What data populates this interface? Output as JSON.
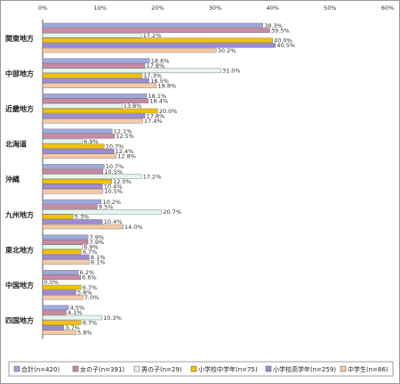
{
  "chart_data": {
    "type": "bar",
    "orientation": "horizontal",
    "title": "",
    "xlabel": "",
    "ylabel": "",
    "xlim": [
      0,
      60
    ],
    "x_ticks": [
      "0%",
      "10%",
      "20%",
      "30%",
      "40%",
      "50%",
      "60%"
    ],
    "grid": false,
    "legend_position": "bottom",
    "categories": [
      "関東地方",
      "中部地方",
      "近畿地方",
      "北海道",
      "沖縄",
      "九州地方",
      "東北地方",
      "中国地方",
      "四国地方"
    ],
    "series": [
      {
        "name": "合計(n=420)",
        "color": "#9ea8dc",
        "values": [
          38.3,
          18.6,
          18.1,
          12.1,
          10.7,
          10.2,
          7.9,
          6.2,
          4.5
        ]
      },
      {
        "name": "女の子(n=391)",
        "color": "#c889a4",
        "values": [
          39.5,
          17.8,
          18.4,
          12.5,
          10.5,
          9.5,
          7.9,
          6.6,
          4.1
        ]
      },
      {
        "name": "男の子(n=29)",
        "color": "#e4f6ee",
        "values": [
          17.2,
          31.0,
          13.8,
          6.9,
          17.2,
          20.7,
          6.9,
          0.0,
          10.3
        ]
      },
      {
        "name": "小学校中学年(n=75)",
        "color": "#f2c200",
        "values": [
          40.0,
          17.3,
          20.0,
          10.7,
          12.0,
          5.3,
          6.7,
          6.7,
          6.7
        ]
      },
      {
        "name": "小学校高学年(n=259)",
        "color": "#a08ad2",
        "values": [
          40.5,
          18.5,
          17.8,
          12.4,
          10.4,
          10.4,
          8.1,
          5.8,
          3.7
        ]
      },
      {
        "name": "中学生(n=86)",
        "color": "#f4c9a6",
        "values": [
          30.2,
          19.8,
          17.4,
          12.8,
          10.5,
          14.0,
          8.1,
          7.0,
          5.8
        ]
      }
    ],
    "data_labels": [
      [
        "38.3%",
        "18.6%",
        "18.1%",
        "12.1%",
        "10.7%",
        "10.2%",
        "7.9%",
        "6.2%",
        "4.5%"
      ],
      [
        "39.5%",
        "17.8%",
        "18.4%",
        "12.5%",
        "10.5%",
        "9.5%",
        "7.9%",
        "6.6%",
        "4.1%"
      ],
      [
        "17.2%",
        "31.0%",
        "13.8%",
        "6.9%",
        "17.2%",
        "20.7%",
        "6.9%",
        "0.0%",
        "10.3%"
      ],
      [
        "40.0%",
        "17.3%",
        "20.0%",
        "10.7%",
        "12.0%",
        "5.3%",
        "6.7%",
        "6.7%",
        "6.7%"
      ],
      [
        "40.5%",
        "18.5%",
        "17.8%",
        "12.4%",
        "10.4%",
        "10.4%",
        "8.1%",
        "5.8%",
        "3.7%"
      ],
      [
        "30.2%",
        "19.8%",
        "17.4%",
        "12.8%",
        "10.5%",
        "14.0%",
        "8.1%",
        "7.0%",
        "5.8%"
      ]
    ]
  }
}
